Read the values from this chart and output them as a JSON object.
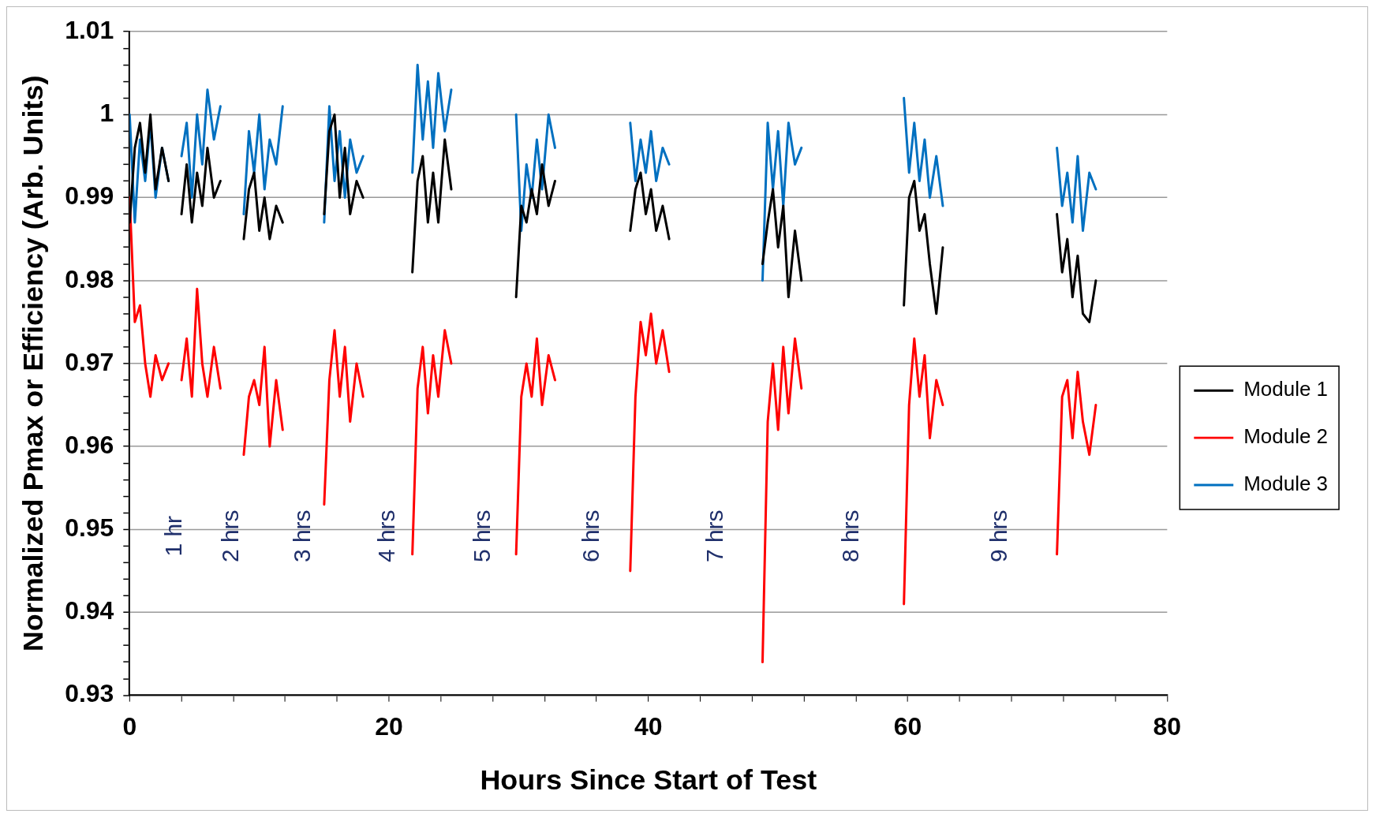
{
  "chart_data": {
    "type": "line",
    "xlabel": "Hours Since Start of Test",
    "ylabel": "Normalized Pmax or Efficiency (Arb. Units)",
    "x": [
      0,
      0.4,
      0.8,
      1.2,
      1.6,
      2,
      2.5,
      3,
      3.5,
      4,
      4.4,
      4.8,
      5.2,
      5.6,
      6,
      6.5,
      7,
      7.9,
      8.8,
      9.2,
      9.6,
      10,
      10.4,
      10.8,
      11.3,
      11.8,
      13.4,
      15,
      15.4,
      15.8,
      16.2,
      16.6,
      17,
      17.5,
      18,
      19.9,
      21.8,
      22.2,
      22.6,
      23,
      23.4,
      23.8,
      24.3,
      24.8,
      27.3,
      29.8,
      30.2,
      30.6,
      31,
      31.4,
      31.8,
      32.3,
      32.8,
      35.7,
      38.6,
      39,
      39.4,
      39.8,
      40.2,
      40.6,
      41.1,
      41.6,
      45.2,
      48.8,
      49.2,
      49.6,
      50,
      50.4,
      50.8,
      51.3,
      51.8,
      55.7,
      59.7,
      60.1,
      60.5,
      60.9,
      61.3,
      61.7,
      62.2,
      62.7,
      67.1,
      71.5,
      71.9,
      72.3,
      72.7,
      73.1,
      73.5,
      74,
      74.5
    ],
    "series": [
      {
        "name": "Module 1",
        "color": "#000000",
        "values": [
          0.987,
          0.996,
          0.999,
          0.993,
          1.0,
          0.991,
          0.996,
          0.992,
          null,
          0.988,
          0.994,
          0.987,
          0.993,
          0.989,
          0.996,
          0.99,
          0.992,
          null,
          0.985,
          0.991,
          0.993,
          0.986,
          0.99,
          0.985,
          0.989,
          0.987,
          null,
          0.988,
          0.998,
          1.0,
          0.99,
          0.996,
          0.988,
          0.992,
          0.99,
          null,
          0.981,
          0.992,
          0.995,
          0.987,
          0.993,
          0.987,
          0.997,
          0.991,
          null,
          0.978,
          0.989,
          0.987,
          0.991,
          0.988,
          0.994,
          0.989,
          0.992,
          null,
          0.986,
          0.991,
          0.993,
          0.988,
          0.991,
          0.986,
          0.989,
          0.985,
          null,
          0.982,
          0.987,
          0.991,
          0.984,
          0.989,
          0.978,
          0.986,
          0.98,
          null,
          0.977,
          0.99,
          0.992,
          0.986,
          0.988,
          0.982,
          0.976,
          0.984,
          null,
          0.988,
          0.981,
          0.985,
          0.978,
          0.983,
          0.976,
          0.975,
          0.98
        ]
      },
      {
        "name": "Module 2",
        "color": "#ff0000",
        "values": [
          0.99,
          0.975,
          0.977,
          0.97,
          0.966,
          0.971,
          0.968,
          0.97,
          null,
          0.968,
          0.973,
          0.966,
          0.979,
          0.97,
          0.966,
          0.972,
          0.967,
          null,
          0.959,
          0.966,
          0.968,
          0.965,
          0.972,
          0.96,
          0.968,
          0.962,
          null,
          0.953,
          0.968,
          0.974,
          0.966,
          0.972,
          0.963,
          0.97,
          0.966,
          null,
          0.947,
          0.967,
          0.972,
          0.964,
          0.971,
          0.966,
          0.974,
          0.97,
          null,
          0.947,
          0.966,
          0.97,
          0.966,
          0.973,
          0.965,
          0.971,
          0.968,
          null,
          0.945,
          0.966,
          0.975,
          0.971,
          0.976,
          0.97,
          0.974,
          0.969,
          null,
          0.934,
          0.963,
          0.97,
          0.962,
          0.972,
          0.964,
          0.973,
          0.967,
          null,
          0.941,
          0.965,
          0.973,
          0.966,
          0.971,
          0.961,
          0.968,
          0.965,
          null,
          0.947,
          0.966,
          0.968,
          0.961,
          0.969,
          0.963,
          0.959,
          0.965
        ]
      },
      {
        "name": "Module 3",
        "color": "#0070c0",
        "values": [
          1.0,
          0.987,
          0.997,
          0.992,
          0.999,
          0.99,
          0.996,
          0.992,
          null,
          0.995,
          0.999,
          0.99,
          1.0,
          0.994,
          1.003,
          0.997,
          1.001,
          null,
          0.988,
          0.998,
          0.993,
          1.0,
          0.991,
          0.997,
          0.994,
          1.001,
          null,
          0.987,
          1.001,
          0.992,
          0.998,
          0.99,
          0.997,
          0.993,
          0.995,
          null,
          0.993,
          1.006,
          0.997,
          1.004,
          0.996,
          1.005,
          0.998,
          1.003,
          null,
          1.0,
          0.986,
          0.994,
          0.99,
          0.997,
          0.991,
          1.0,
          0.996,
          null,
          0.999,
          0.992,
          0.997,
          0.993,
          0.998,
          0.992,
          0.996,
          0.994,
          null,
          0.98,
          0.999,
          0.991,
          0.998,
          0.989,
          0.999,
          0.994,
          0.996,
          null,
          1.002,
          0.993,
          0.999,
          0.992,
          0.997,
          0.99,
          0.995,
          0.989,
          null,
          0.996,
          0.989,
          0.993,
          0.987,
          0.995,
          0.986,
          0.993,
          0.991
        ]
      }
    ],
    "xlim": [
      0,
      80
    ],
    "xticks": [
      0,
      {
        "value": 4,
        "label": null
      },
      {
        "value": 8,
        "label": null
      },
      {
        "value": 12,
        "label": null
      },
      {
        "value": 16,
        "label": null
      },
      20,
      {
        "value": 24,
        "label": null
      },
      {
        "value": 28,
        "label": null
      },
      {
        "value": 32,
        "label": null
      },
      {
        "value": 36,
        "label": null
      },
      40,
      {
        "value": 44,
        "label": null
      },
      {
        "value": 48,
        "label": null
      },
      {
        "value": 52,
        "label": null
      },
      {
        "value": 56,
        "label": null
      },
      60,
      {
        "value": 64,
        "label": null
      },
      {
        "value": 68,
        "label": null
      },
      {
        "value": 72,
        "label": null
      },
      {
        "value": 76,
        "label": null
      },
      80
    ],
    "ylim": [
      0.93,
      1.01
    ],
    "yticks": [
      0.93,
      {
        "value": 0.932,
        "label": null
      },
      {
        "value": 0.934,
        "label": null
      },
      {
        "value": 0.936,
        "label": null
      },
      {
        "value": 0.938,
        "label": null
      },
      0.94,
      {
        "value": 0.942,
        "label": null
      },
      {
        "value": 0.944,
        "label": null
      },
      {
        "value": 0.946,
        "label": null
      },
      {
        "value": 0.948,
        "label": null
      },
      0.95,
      {
        "value": 0.952,
        "label": null
      },
      {
        "value": 0.954,
        "label": null
      },
      {
        "value": 0.956,
        "label": null
      },
      {
        "value": 0.958,
        "label": null
      },
      0.96,
      {
        "value": 0.962,
        "label": null
      },
      {
        "value": 0.964,
        "label": null
      },
      {
        "value": 0.966,
        "label": null
      },
      {
        "value": 0.968,
        "label": null
      },
      0.97,
      {
        "value": 0.972,
        "label": null
      },
      {
        "value": 0.974,
        "label": null
      },
      {
        "value": 0.976,
        "label": null
      },
      {
        "value": 0.978,
        "label": null
      },
      0.98,
      {
        "value": 0.982,
        "label": null
      },
      {
        "value": 0.984,
        "label": null
      },
      {
        "value": 0.986,
        "label": null
      },
      {
        "value": 0.988,
        "label": null
      },
      0.99,
      {
        "value": 0.992,
        "label": null
      },
      {
        "value": 0.994,
        "label": null
      },
      {
        "value": 0.996,
        "label": null
      },
      {
        "value": 0.998,
        "label": null
      },
      {
        "value": 1,
        "label": "1"
      },
      {
        "value": 1.002,
        "label": null
      },
      {
        "value": 1.004,
        "label": null
      },
      {
        "value": 1.006,
        "label": null
      },
      {
        "value": 1.008,
        "label": null
      },
      1.01
    ],
    "grid": "y",
    "legend": "right",
    "marker": "none",
    "line_style": "solid",
    "annotations": [
      "1 hr",
      "2 hrs",
      "3 hrs",
      "4 hrs",
      "5 hrs",
      "6 hrs",
      "7 hrs",
      "8 hrs",
      "9 hrs"
    ]
  }
}
